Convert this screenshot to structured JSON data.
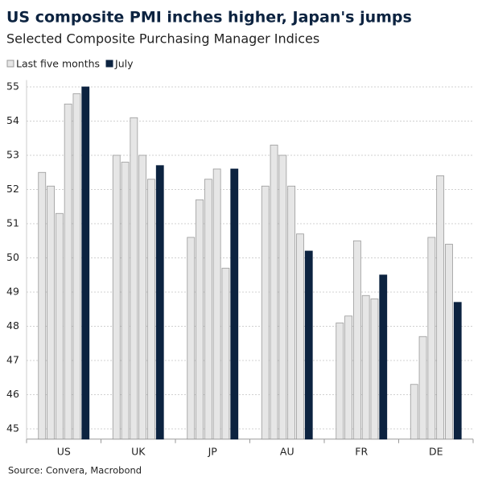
{
  "chart_data": {
    "type": "grouped-bar",
    "title": "US composite PMI inches higher, Japan's jumps",
    "subtitle": "Selected Composite Purchasing Manager Indices",
    "source": "Source: Convera, Macrobond",
    "categories": [
      "US",
      "UK",
      "JP",
      "AU",
      "FR",
      "DE"
    ],
    "series": [
      {
        "name": "Last five months",
        "color": "#e6e6e6",
        "values": [
          [
            52.5,
            52.1,
            51.3,
            54.5,
            54.8
          ],
          [
            53.0,
            52.8,
            54.1,
            53.0,
            52.3
          ],
          [
            50.6,
            51.7,
            52.3,
            52.6,
            49.7
          ],
          [
            52.1,
            53.3,
            53.0,
            52.1,
            50.7
          ],
          [
            48.1,
            48.3,
            50.5,
            48.9,
            48.8
          ],
          [
            46.3,
            47.7,
            50.6,
            52.4,
            50.4
          ]
        ]
      },
      {
        "name": "July",
        "color": "#0c2340",
        "values": [
          55.0,
          52.7,
          52.6,
          50.2,
          49.5,
          48.7
        ]
      }
    ],
    "ylim": [
      44.7,
      55.2
    ],
    "yticks": [
      45,
      46,
      47,
      48,
      49,
      50,
      51,
      52,
      53,
      54,
      55
    ],
    "grid": true,
    "legend": "top-left"
  }
}
